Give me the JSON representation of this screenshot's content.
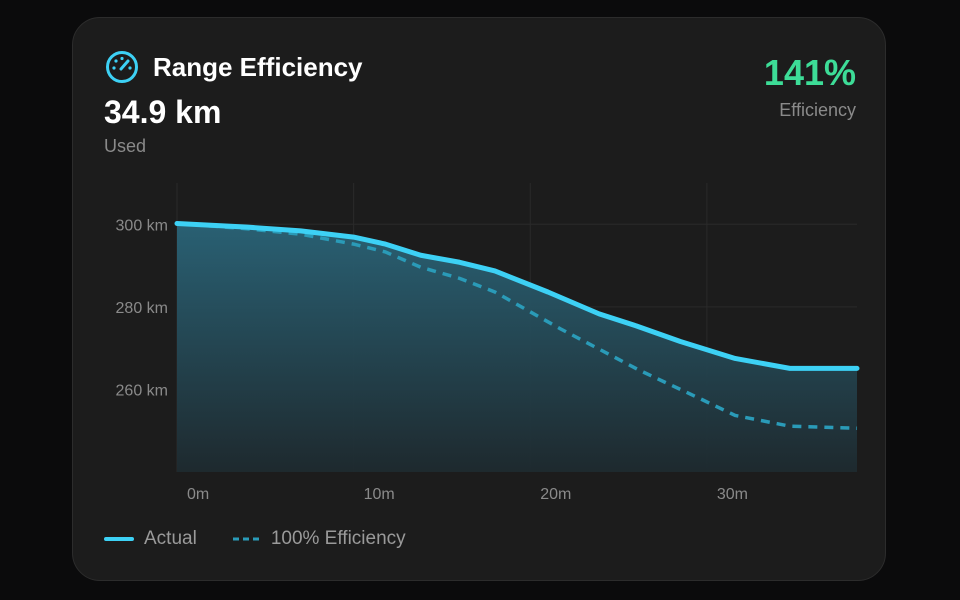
{
  "header": {
    "title": "Range Efficiency",
    "icon": "gauge-icon",
    "value": "34.9 km",
    "value_label": "Used"
  },
  "efficiency": {
    "value": "141%",
    "label": "Efficiency",
    "color": "#3ddc97"
  },
  "chart_data": {
    "type": "area",
    "xlabel": "",
    "ylabel": "",
    "xlim": [
      0,
      38.5
    ],
    "ylim": [
      240,
      310
    ],
    "x_ticks": [
      0,
      10,
      20,
      30
    ],
    "x_tick_labels": [
      "0m",
      "10m",
      "20m",
      "30m"
    ],
    "y_ticks": [
      300,
      280,
      260
    ],
    "y_tick_labels": [
      "300 km",
      "280 km",
      "260 km"
    ],
    "grid": true,
    "legend": "bottom-left",
    "series": [
      {
        "name": "Actual",
        "style": "solid",
        "color": "#3dd1f5",
        "x": [
          0,
          4,
          7,
          10,
          11.8,
          13.8,
          16,
          18,
          21,
          23.9,
          26,
          28.5,
          31.6,
          34.7,
          38.5
        ],
        "y": [
          300.2,
          299.3,
          298.4,
          296.9,
          295.2,
          292.5,
          290.8,
          288.7,
          283.6,
          278.3,
          275.4,
          271.6,
          267.5,
          265.1,
          265.1
        ]
      },
      {
        "name": "100% Efficiency",
        "style": "dashed",
        "color": "#2a9bb8",
        "x": [
          0,
          4,
          7,
          10,
          11.8,
          13.8,
          16,
          18,
          21.7,
          26.2,
          29.6,
          31.6,
          34.7,
          38.5
        ],
        "y": [
          300.2,
          298.9,
          297.6,
          295.2,
          293.3,
          289.6,
          286.9,
          283.6,
          274.7,
          264.6,
          257.8,
          253.7,
          251.1,
          250.6
        ]
      }
    ]
  }
}
